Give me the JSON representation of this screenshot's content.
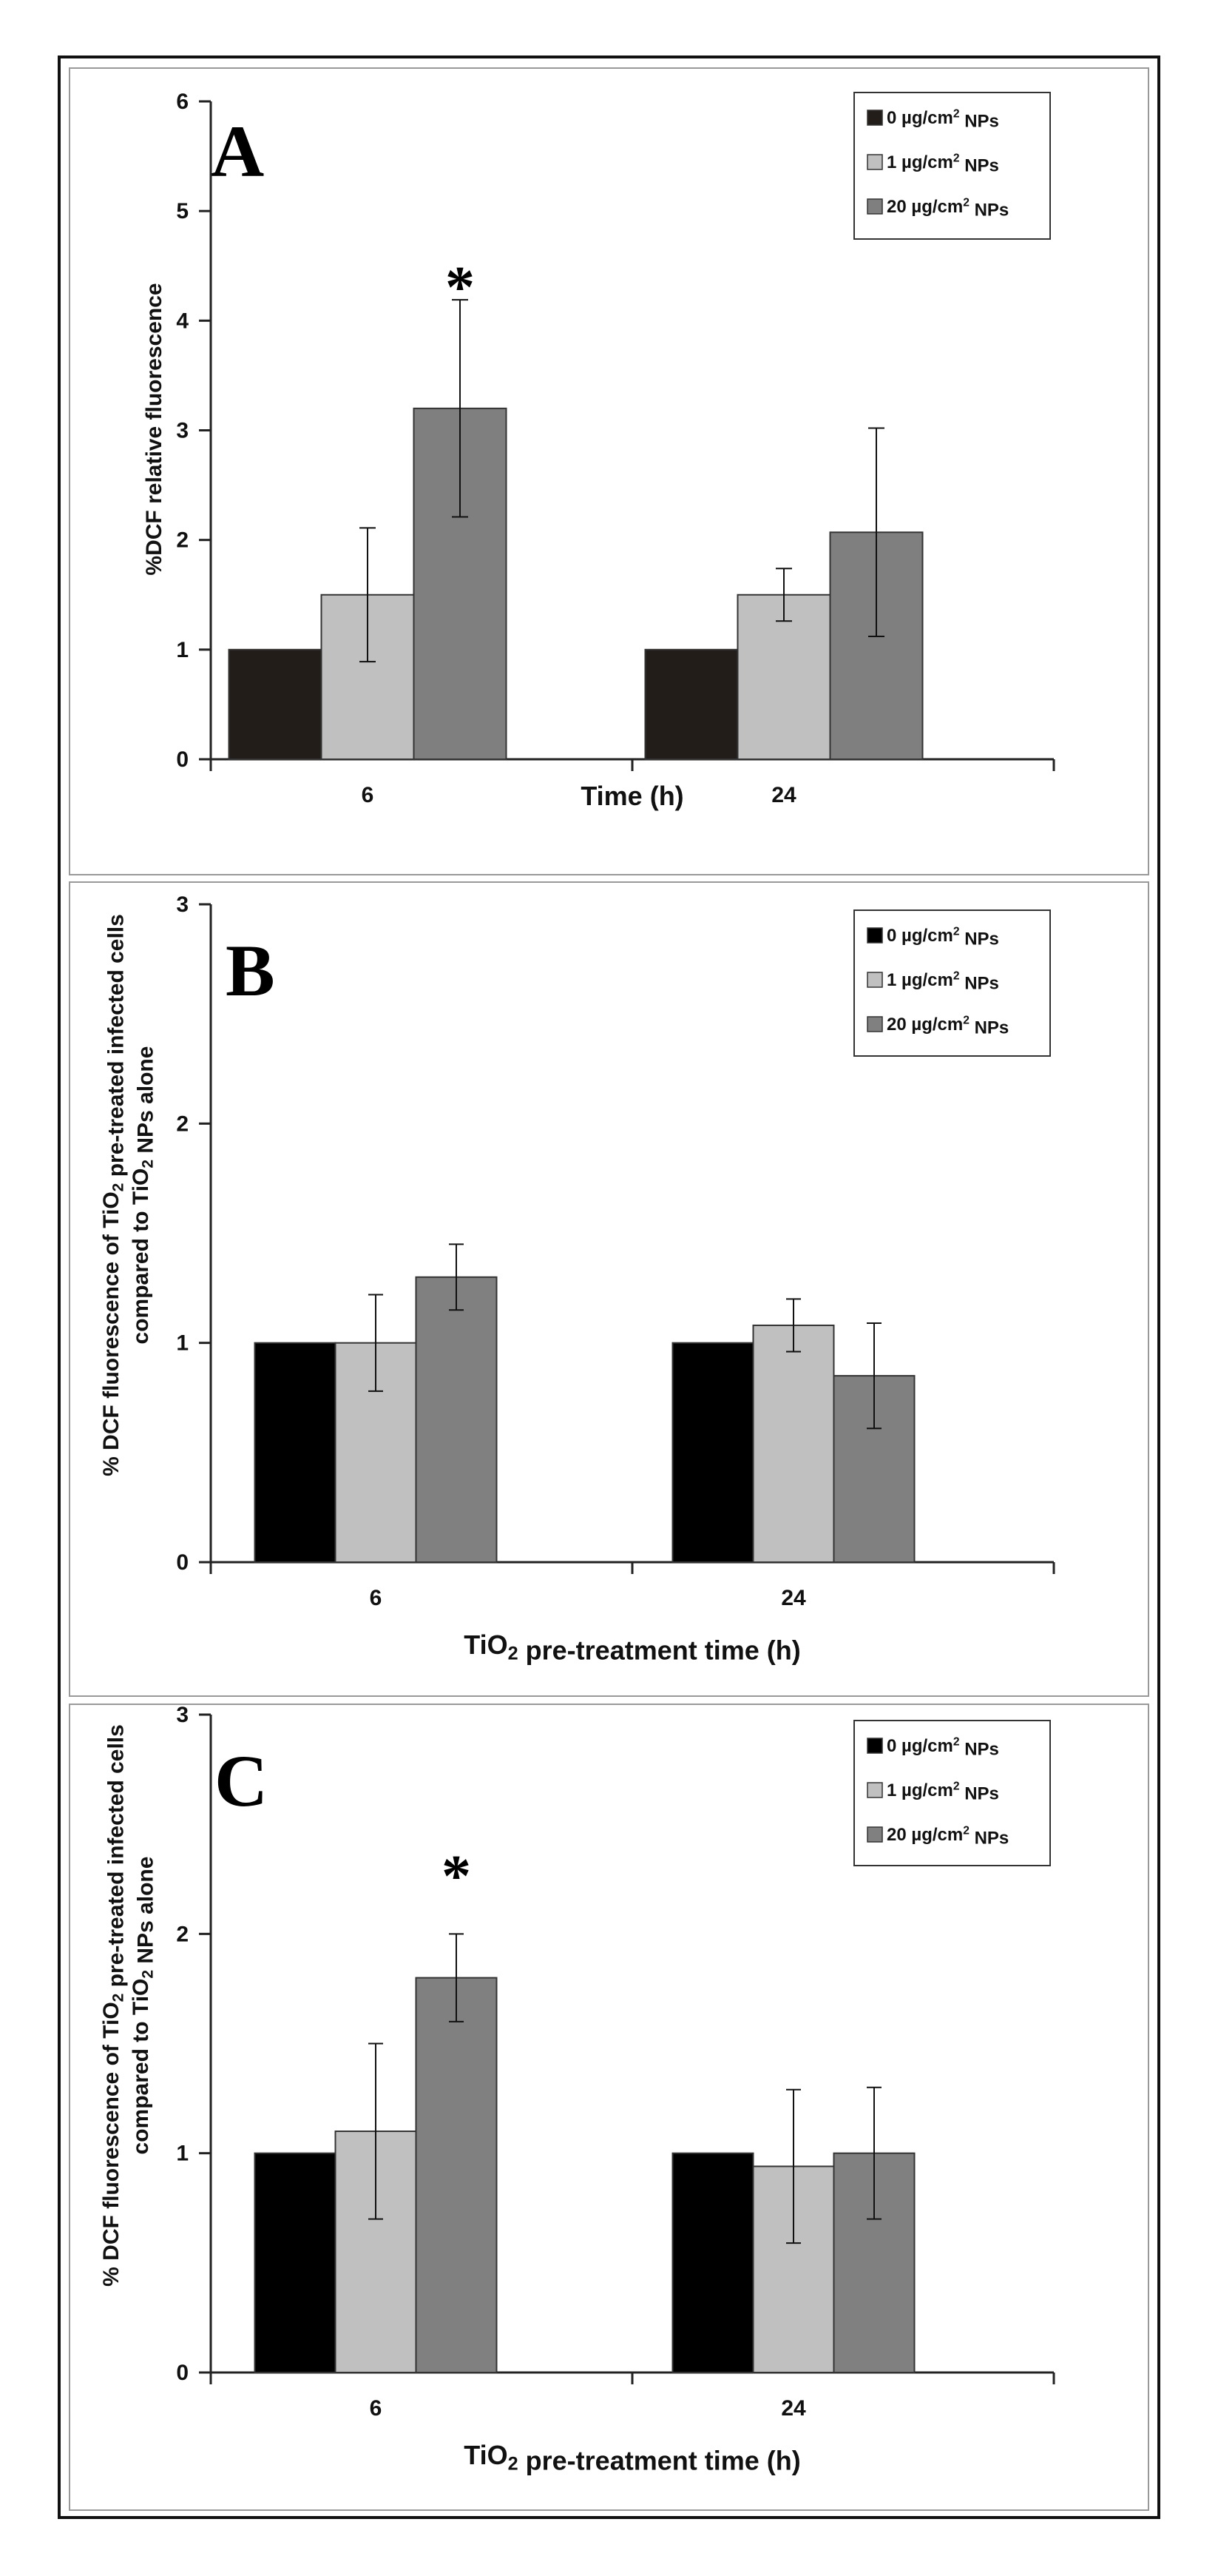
{
  "chart_data": [
    {
      "type": "bar",
      "panel_label": "A",
      "title": "",
      "xlabel": "Time (h)",
      "ylabel": "%DCF relative fluorescence",
      "categories": [
        "6",
        "24"
      ],
      "ylim": [
        0,
        6
      ],
      "yticks": [
        "0",
        "1",
        "2",
        "3",
        "4",
        "5",
        "6"
      ],
      "grid": false,
      "legend_position": "top-right",
      "series": [
        {
          "name": "0 µg/cm² NPs",
          "values": [
            1.0,
            1.0
          ],
          "errors": [
            0,
            0
          ],
          "color": "#231d19"
        },
        {
          "name": "1 µg/cm² NPs",
          "values": [
            1.5,
            1.5
          ],
          "errors": [
            0.61,
            0.24
          ],
          "color": "#c0c0c0"
        },
        {
          "name": "20 µg/cm² NPs",
          "values": [
            3.2,
            2.07
          ],
          "errors": [
            0.99,
            0.95
          ],
          "color": "#7f7f7f"
        }
      ],
      "significance": [
        {
          "category": 0,
          "series": 2,
          "symbol": "*"
        }
      ]
    },
    {
      "type": "bar",
      "panel_label": "B",
      "title": "",
      "xlabel": "TiO2 pre-treatment time (h)",
      "ylabel_line1": "% DCF fluorescence of TiO2 pre-treated infected cells",
      "ylabel_line2": "compared to TiO2 NPs alone",
      "categories": [
        "6",
        "24"
      ],
      "ylim": [
        0,
        3
      ],
      "yticks": [
        "0",
        "1",
        "2",
        "3"
      ],
      "grid": false,
      "legend_position": "top-right",
      "series": [
        {
          "name": "0 µg/cm² NPs",
          "values": [
            1.0,
            1.0
          ],
          "errors": [
            0,
            0
          ],
          "color": "#000000"
        },
        {
          "name": "1 µg/cm² NPs",
          "values": [
            1.0,
            1.08
          ],
          "errors": [
            0.22,
            0.12
          ],
          "color": "#c0c0c0"
        },
        {
          "name": "20 µg/cm² NPs",
          "values": [
            1.3,
            0.85
          ],
          "errors": [
            0.15,
            0.24
          ],
          "color": "#808080"
        }
      ],
      "significance": []
    },
    {
      "type": "bar",
      "panel_label": "C",
      "title": "",
      "xlabel": "TiO2 pre-treatment time (h)",
      "ylabel_line1": "% DCF fluorescence of TiO2 pre-treated infected cells",
      "ylabel_line2": "compared to TiO2 NPs alone",
      "categories": [
        "6",
        "24"
      ],
      "ylim": [
        0,
        3
      ],
      "yticks": [
        "0",
        "1",
        "2",
        "3"
      ],
      "grid": false,
      "legend_position": "top-right",
      "series": [
        {
          "name": "0 µg/cm² NPs",
          "values": [
            1.0,
            1.0
          ],
          "errors": [
            0,
            0
          ],
          "color": "#000000"
        },
        {
          "name": "1 µg/cm² NPs",
          "values": [
            1.1,
            0.94
          ],
          "errors": [
            0.4,
            0.35
          ],
          "color": "#c0c0c0"
        },
        {
          "name": "20 µg/cm² NPs",
          "values": [
            1.8,
            1.0
          ],
          "errors": [
            0.2,
            0.3
          ],
          "color": "#808080"
        }
      ],
      "significance": [
        {
          "category": 0,
          "series": 2,
          "symbol": "*"
        }
      ]
    }
  ]
}
